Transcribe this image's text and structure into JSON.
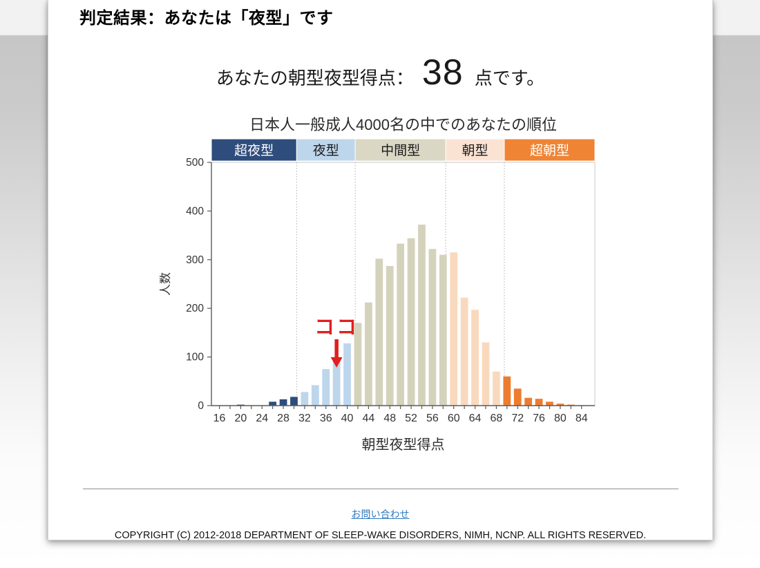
{
  "page": {
    "title": "判定結果：あなたは「夜型」です",
    "score_prefix": "あなたの朝型夜型得点：",
    "score_value": "38",
    "score_suffix": "点です。",
    "contact_link": "お問い合わせ",
    "copyright": "COPYRIGHT (C) 2012-2018 DEPARTMENT OF SLEEP-WAKE DISORDERS, NIMH, NCNP. ALL RIGHTS RESERVED."
  },
  "chart_data": {
    "type": "bar",
    "title": "日本人一般成人4000名の中でのあなたの順位",
    "xlabel": "朝型夜型得点",
    "ylabel": "人数",
    "xlim": [
      14.5,
      86.5
    ],
    "ylim": [
      0,
      500
    ],
    "y_ticks": [
      0,
      100,
      200,
      300,
      400,
      500
    ],
    "x_tick_step": 2,
    "x_label_step": 4,
    "x_label_min": 16,
    "x_label_max": 84,
    "x": [
      16,
      18,
      20,
      22,
      24,
      26,
      28,
      30,
      32,
      34,
      36,
      38,
      40,
      42,
      44,
      46,
      48,
      50,
      52,
      54,
      56,
      58,
      60,
      62,
      64,
      66,
      68,
      70,
      72,
      74,
      76,
      78,
      80,
      82,
      84
    ],
    "values": [
      0,
      0,
      2,
      0,
      0,
      8,
      13,
      18,
      28,
      42,
      75,
      100,
      128,
      170,
      212,
      302,
      287,
      333,
      344,
      372,
      322,
      310,
      315,
      222,
      197,
      130,
      70,
      60,
      35,
      16,
      14,
      8,
      4,
      2,
      1
    ],
    "bar_bin_width": 2,
    "bar_fill_ratio": 0.7,
    "categories": [
      {
        "label": "超夜型",
        "from": 14.5,
        "to": 30.5,
        "band_color": "#2E4D7C",
        "bar_color": "#2E4D7C",
        "text_color": "#FFFFFF"
      },
      {
        "label": "夜型",
        "from": 30.5,
        "to": 41.5,
        "band_color": "#BDD6EC",
        "bar_color": "#BDD6EC",
        "text_color": "#1A1A1A"
      },
      {
        "label": "中間型",
        "from": 41.5,
        "to": 58.5,
        "band_color": "#DAD7C4",
        "bar_color": "#D5D2BC",
        "text_color": "#1A1A1A"
      },
      {
        "label": "朝型",
        "from": 58.5,
        "to": 69.5,
        "band_color": "#FBE3D4",
        "bar_color": "#F9D9BE",
        "text_color": "#1A1A1A"
      },
      {
        "label": "超朝型",
        "from": 69.5,
        "to": 86.5,
        "band_color": "#EE8434",
        "bar_color": "#EC7D2F",
        "text_color": "#FFFFFF"
      }
    ],
    "boundaries": [
      30.5,
      41.5,
      58.5,
      69.5
    ],
    "annotation": {
      "label": "ココ",
      "x": 38,
      "color": "#E01F1F"
    },
    "legend_position": "top-band",
    "grid": "off",
    "axis_color": "#5a5a5a",
    "frame_color": "#c9c9c9",
    "text_color": "#333333"
  }
}
